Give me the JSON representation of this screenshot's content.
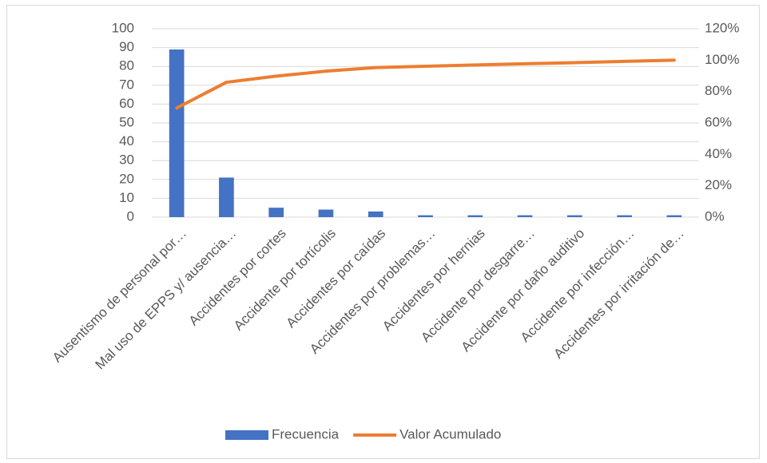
{
  "chart_data": {
    "type": "bar",
    "categories": [
      "Ausentismo de personal por…",
      "Mal uso de EPPS y/ ausencia…",
      "Accidentes por cortes",
      "Accidente por tortícolis",
      "Accidentes por caídas",
      "Accidentes por problemas…",
      "Accidentes por hernias",
      "Accidente por desgarre…",
      "Accidente por daño auditivo",
      "Accidente por infección…",
      "Accidentes por irritación de…"
    ],
    "series": [
      {
        "name": "Frecuencia",
        "type": "bar",
        "color": "#4472c4",
        "values": [
          89,
          21,
          5,
          4,
          3,
          1,
          1,
          1,
          1,
          1,
          1
        ]
      },
      {
        "name": "Valor Acumulado",
        "type": "line",
        "axis": "y2",
        "color": "#ed7d31",
        "values": [
          69.5,
          85.9,
          89.8,
          93.0,
          95.3,
          96.1,
          96.9,
          97.7,
          98.4,
          99.2,
          100
        ]
      }
    ],
    "ylim": [
      0,
      100
    ],
    "yticks": [
      0,
      10,
      20,
      30,
      40,
      50,
      60,
      70,
      80,
      90,
      100
    ],
    "y2lim": [
      0,
      120
    ],
    "y2ticks": [
      {
        "value": 0,
        "label": "0%"
      },
      {
        "value": 20,
        "label": "20%"
      },
      {
        "value": 40,
        "label": "40%"
      },
      {
        "value": 60,
        "label": "60%"
      },
      {
        "value": 80,
        "label": "80%"
      },
      {
        "value": 100,
        "label": "100%"
      },
      {
        "value": 120,
        "label": "120%"
      }
    ],
    "grid": true,
    "legend": "bottom"
  }
}
